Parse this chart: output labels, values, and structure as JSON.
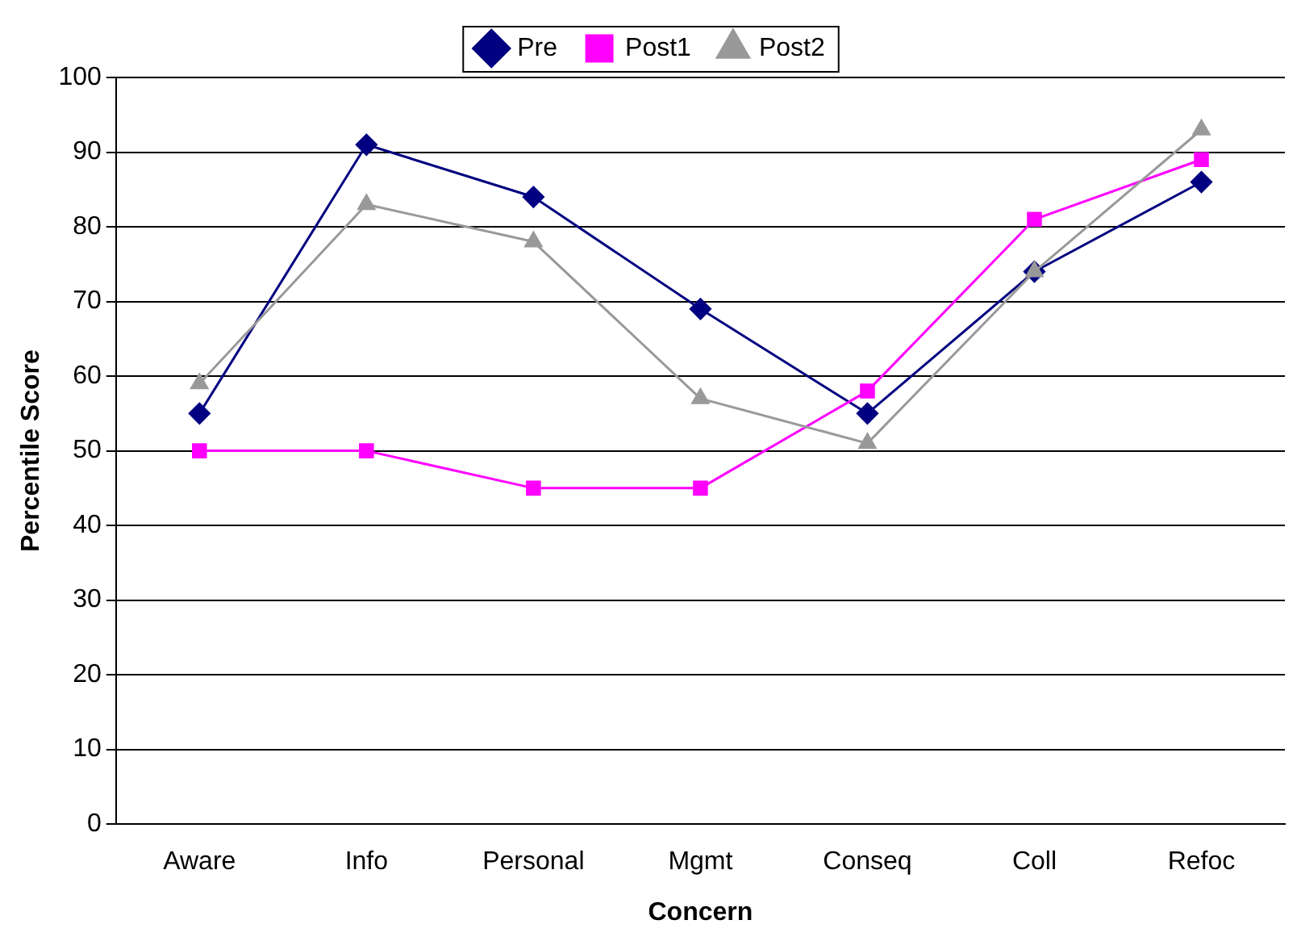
{
  "chart_data": {
    "type": "line",
    "xlabel": "Concern",
    "ylabel": "Percentile Score",
    "categories": [
      "Aware",
      "Info",
      "Personal",
      "Mgmt",
      "Conseq",
      "Coll",
      "Refoc"
    ],
    "series": [
      {
        "name": "Pre",
        "color": "#000080",
        "marker": "diamond",
        "values": [
          55,
          91,
          84,
          69,
          55,
          74,
          86
        ]
      },
      {
        "name": "Post1",
        "color": "#ff00ff",
        "marker": "square",
        "values": [
          50,
          50,
          45,
          45,
          58,
          81,
          89
        ]
      },
      {
        "name": "Post2",
        "color": "#999999",
        "marker": "triangle",
        "values": [
          59,
          83,
          78,
          57,
          51,
          74,
          93
        ]
      }
    ],
    "ylim": [
      0,
      100
    ],
    "yticks": [
      0,
      10,
      20,
      30,
      40,
      50,
      60,
      70,
      80,
      90,
      100
    ],
    "grid": "y",
    "legend": "top",
    "line_style": "solid"
  }
}
